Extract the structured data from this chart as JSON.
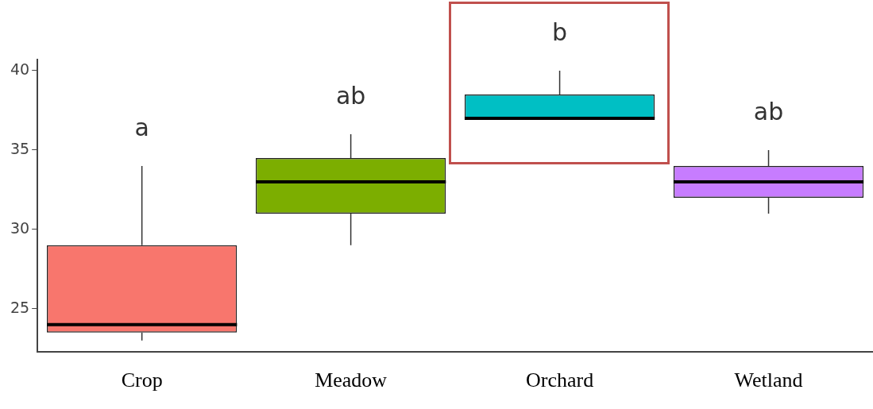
{
  "chart_data": {
    "type": "box",
    "categories": [
      "Crop",
      "Meadow",
      "Orchard",
      "Wetland"
    ],
    "colors": [
      "#f8766d",
      "#7cae00",
      "#00bfc4",
      "#c77cff"
    ],
    "boxes": [
      {
        "low": 23,
        "q1": 23.5,
        "median": 24,
        "q3": 29,
        "high": 34
      },
      {
        "low": 29,
        "q1": 31,
        "median": 33,
        "q3": 34.5,
        "high": 36
      },
      {
        "low": 37,
        "q1": 37,
        "median": 37,
        "q3": 38.5,
        "high": 40
      },
      {
        "low": 31,
        "q1": 32,
        "median": 33,
        "q3": 34,
        "high": 35
      }
    ],
    "ylim": [
      22.3,
      40.7
    ],
    "yticks": [
      25,
      30,
      35,
      40
    ],
    "grid": false,
    "legend": false,
    "annotations": [
      "a",
      "ab",
      "b",
      "ab"
    ]
  }
}
